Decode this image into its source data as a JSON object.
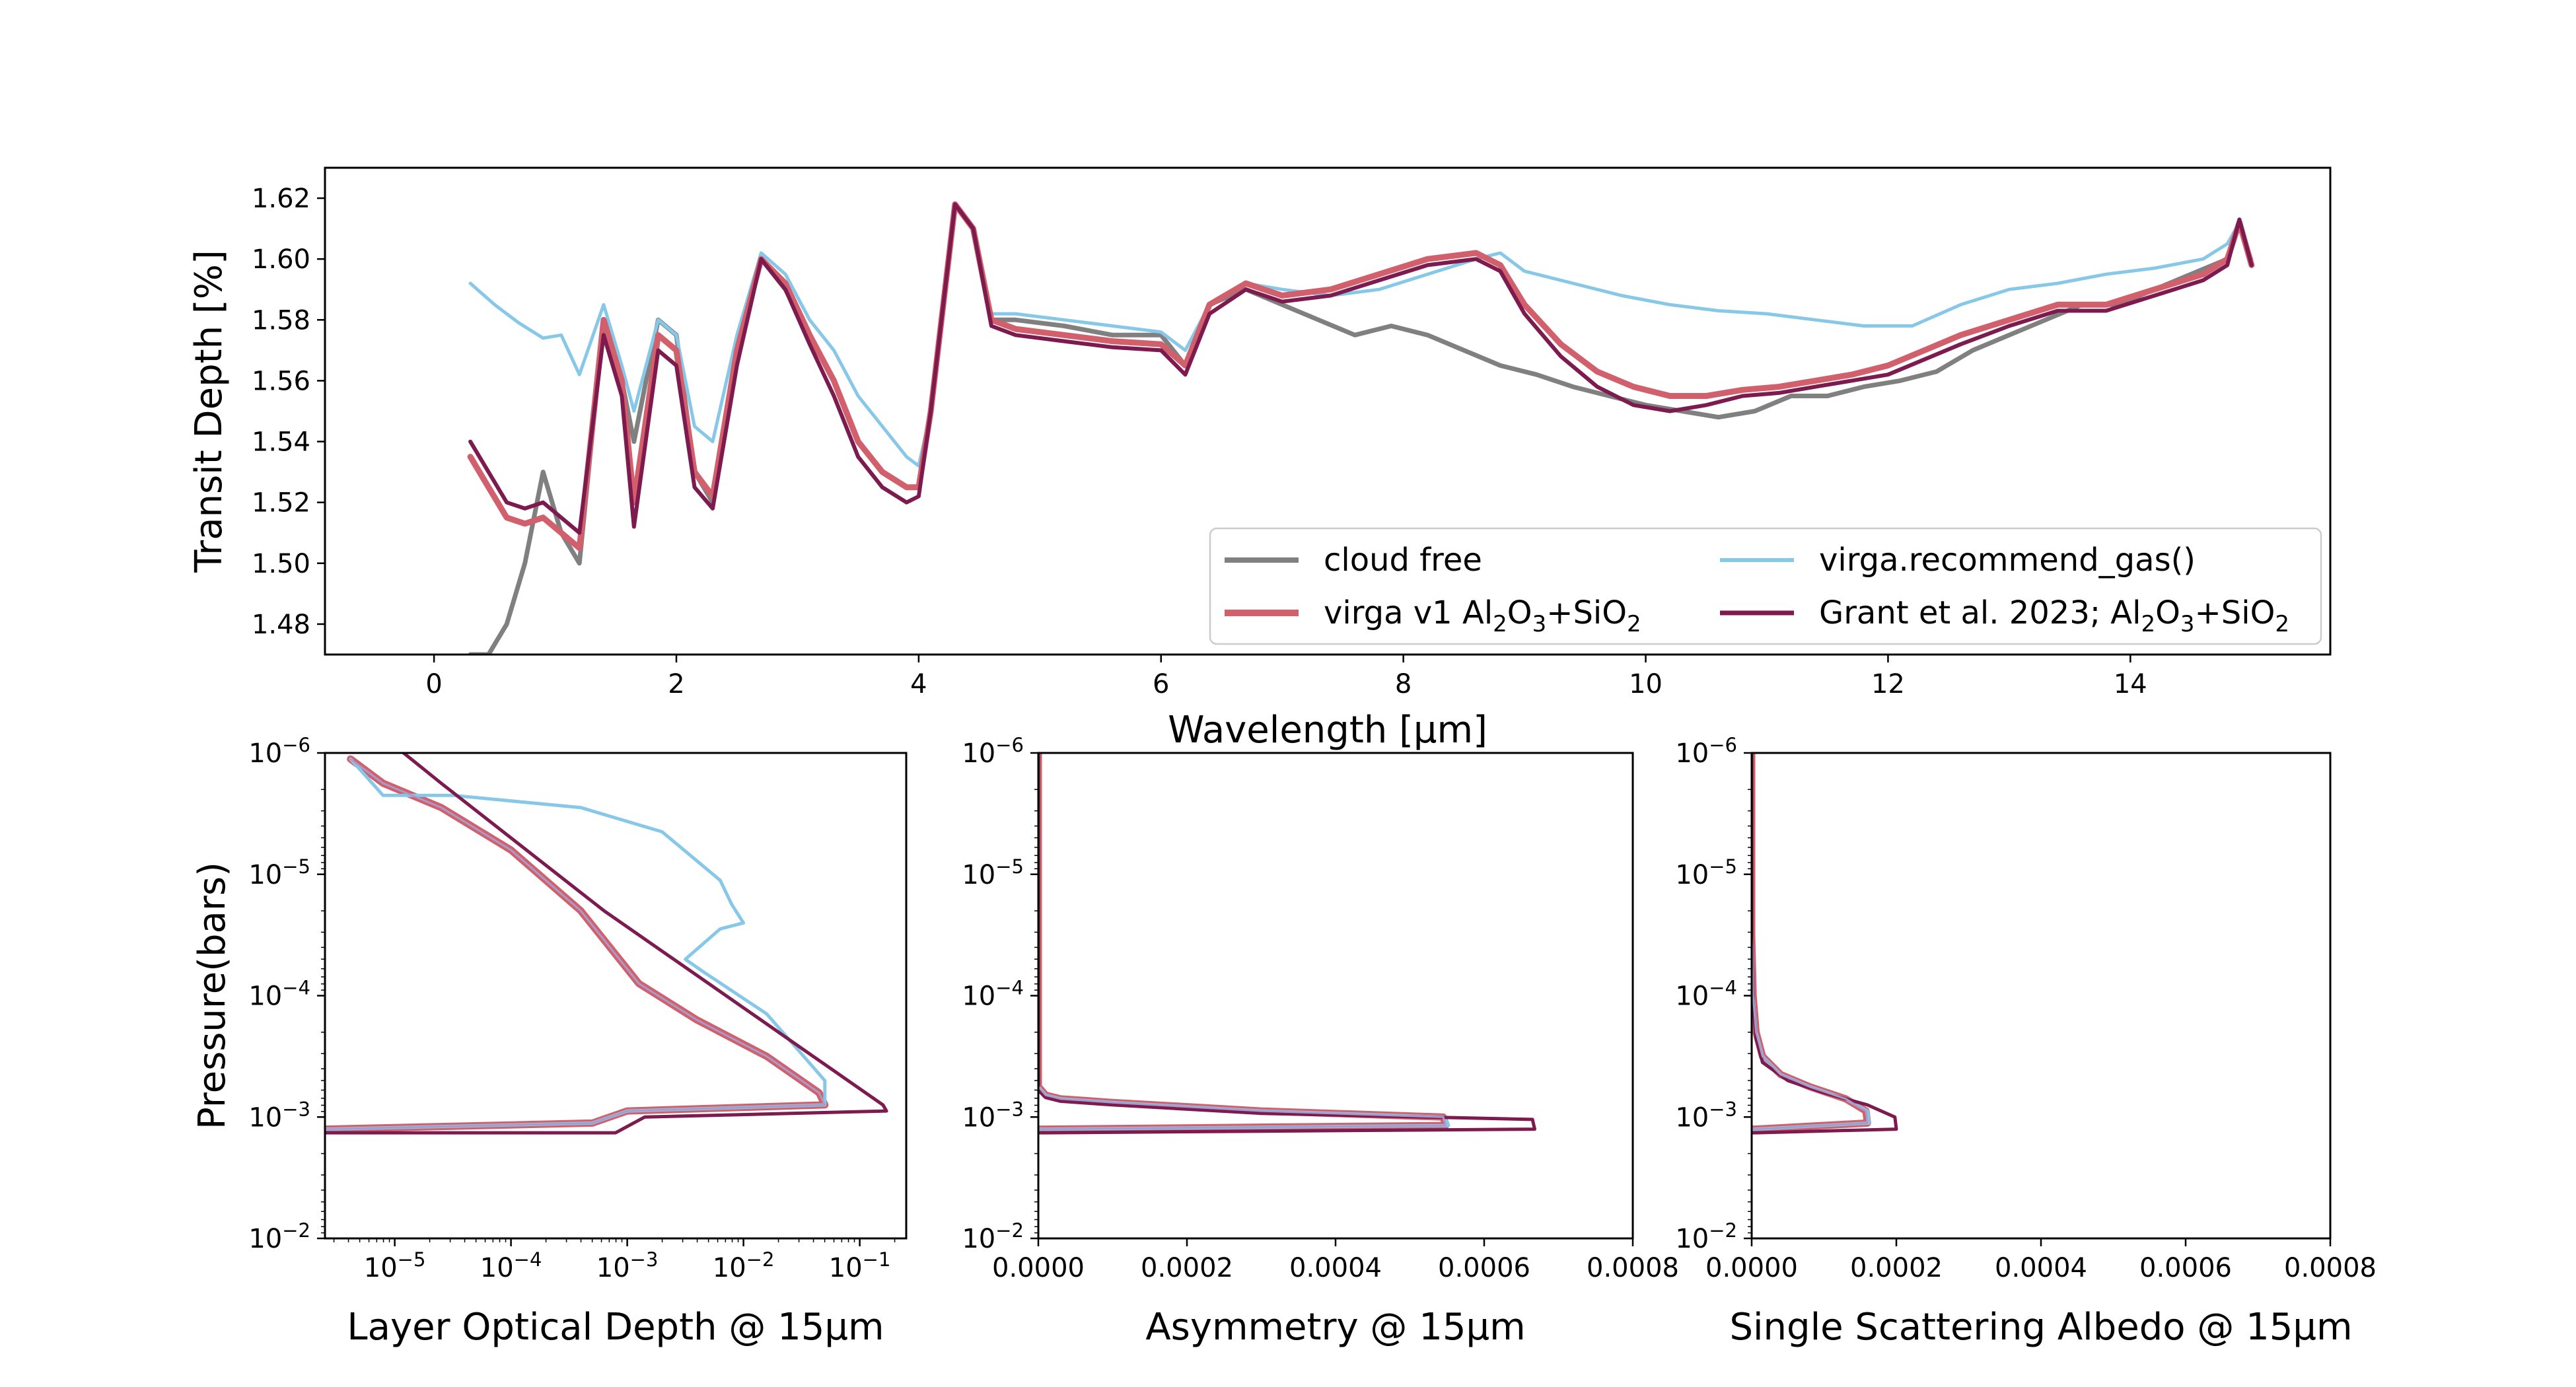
{
  "colors": {
    "cloud_free": "#808080",
    "virga_v1": "#d1606c",
    "recommend_gas": "#87c8e8",
    "grant": "#7d1a4e",
    "inner_light": "#a99bc9"
  },
  "chart_data": [
    {
      "type": "line",
      "id": "spectrum",
      "xlabel": "Wavelength [μm]",
      "ylabel": "Transit Depth [%]",
      "xlim": [
        -0.9,
        15.65
      ],
      "ylim": [
        1.47,
        1.63
      ],
      "xticks": [
        "0",
        "2",
        "4",
        "6",
        "8",
        "10",
        "12",
        "14"
      ],
      "yticks": [
        "1.48",
        "1.50",
        "1.52",
        "1.54",
        "1.56",
        "1.58",
        "1.60",
        "1.62"
      ],
      "legend": {
        "placement": "lower right",
        "entries": [
          {
            "key": "cloud_free",
            "label": "cloud free"
          },
          {
            "key": "recommend_gas",
            "label": "virga.recommend_gas()"
          },
          {
            "key": "virga_v1",
            "label_parts": [
              "virga v1 Al",
              "2",
              "O",
              "3",
              "+SiO",
              "2"
            ]
          },
          {
            "key": "grant",
            "label_parts": [
              "Grant et al. 2023; Al",
              "2",
              "O",
              "3",
              "+SiO",
              "2"
            ]
          }
        ]
      },
      "series": [
        {
          "key": "cloud_free",
          "name": "cloud free",
          "x": [
            0.3,
            0.45,
            0.6,
            0.75,
            0.9,
            1.05,
            1.2,
            1.4,
            1.55,
            1.65,
            1.85,
            2.0,
            2.15,
            2.3,
            2.5,
            2.7,
            2.9,
            3.1,
            3.3,
            3.5,
            3.7,
            3.9,
            4.0,
            4.1,
            4.3,
            4.45,
            4.6,
            4.8,
            5.2,
            5.6,
            6.0,
            6.2,
            6.4,
            6.7,
            7.0,
            7.3,
            7.6,
            7.9,
            8.2,
            8.5,
            8.8,
            9.1,
            9.4,
            9.7,
            10.0,
            10.3,
            10.6,
            10.9,
            11.2,
            11.5,
            11.8,
            12.1,
            12.4,
            12.7,
            13.0,
            13.3,
            13.6,
            13.9,
            14.2,
            14.5,
            14.8,
            14.9,
            15.0
          ],
          "y": [
            1.47,
            1.47,
            1.48,
            1.5,
            1.53,
            1.51,
            1.5,
            1.58,
            1.56,
            1.54,
            1.58,
            1.575,
            1.53,
            1.52,
            1.57,
            1.6,
            1.59,
            1.575,
            1.56,
            1.54,
            1.53,
            1.525,
            1.525,
            1.55,
            1.618,
            1.61,
            1.58,
            1.58,
            1.578,
            1.575,
            1.575,
            1.565,
            1.585,
            1.59,
            1.585,
            1.58,
            1.575,
            1.578,
            1.575,
            1.57,
            1.565,
            1.562,
            1.558,
            1.555,
            1.552,
            1.55,
            1.548,
            1.55,
            1.555,
            1.555,
            1.558,
            1.56,
            1.563,
            1.57,
            1.575,
            1.58,
            1.585,
            1.585,
            1.59,
            1.595,
            1.6,
            1.612,
            1.598
          ]
        },
        {
          "key": "recommend_gas",
          "name": "virga.recommend_gas()",
          "x": [
            0.3,
            0.5,
            0.7,
            0.9,
            1.05,
            1.2,
            1.4,
            1.55,
            1.65,
            1.85,
            2.0,
            2.15,
            2.3,
            2.5,
            2.7,
            2.9,
            3.1,
            3.3,
            3.5,
            3.7,
            3.9,
            4.0,
            4.1,
            4.3,
            4.45,
            4.6,
            4.8,
            5.2,
            5.6,
            6.0,
            6.2,
            6.4,
            6.7,
            7.0,
            7.4,
            7.8,
            8.2,
            8.6,
            8.8,
            9.0,
            9.4,
            9.8,
            10.2,
            10.6,
            11.0,
            11.4,
            11.8,
            12.2,
            12.6,
            13.0,
            13.4,
            13.8,
            14.2,
            14.6,
            14.8,
            14.9,
            15.0
          ],
          "y": [
            1.592,
            1.585,
            1.579,
            1.574,
            1.575,
            1.562,
            1.585,
            1.565,
            1.55,
            1.58,
            1.575,
            1.545,
            1.54,
            1.575,
            1.602,
            1.595,
            1.58,
            1.57,
            1.555,
            1.545,
            1.535,
            1.532,
            1.55,
            1.618,
            1.61,
            1.582,
            1.582,
            1.58,
            1.578,
            1.576,
            1.57,
            1.585,
            1.592,
            1.59,
            1.588,
            1.59,
            1.595,
            1.6,
            1.602,
            1.596,
            1.592,
            1.588,
            1.585,
            1.583,
            1.582,
            1.58,
            1.578,
            1.578,
            1.585,
            1.59,
            1.592,
            1.595,
            1.597,
            1.6,
            1.605,
            1.612,
            1.6
          ]
        },
        {
          "key": "virga_v1",
          "name": "virga v1 Al2O3+SiO2",
          "x": [
            0.3,
            0.45,
            0.6,
            0.75,
            0.9,
            1.05,
            1.2,
            1.4,
            1.55,
            1.65,
            1.85,
            2.0,
            2.15,
            2.3,
            2.5,
            2.7,
            2.9,
            3.1,
            3.3,
            3.5,
            3.7,
            3.9,
            4.0,
            4.1,
            4.3,
            4.45,
            4.6,
            4.8,
            5.2,
            5.6,
            6.0,
            6.2,
            6.4,
            6.7,
            7.0,
            7.4,
            7.8,
            8.2,
            8.6,
            8.8,
            9.0,
            9.3,
            9.6,
            9.9,
            10.2,
            10.5,
            10.8,
            11.1,
            11.4,
            11.7,
            12.0,
            12.3,
            12.6,
            13.0,
            13.4,
            13.8,
            14.2,
            14.6,
            14.8,
            14.9,
            15.0
          ],
          "y": [
            1.535,
            1.525,
            1.515,
            1.513,
            1.515,
            1.51,
            1.505,
            1.58,
            1.56,
            1.52,
            1.575,
            1.57,
            1.53,
            1.522,
            1.57,
            1.6,
            1.592,
            1.575,
            1.56,
            1.54,
            1.53,
            1.525,
            1.525,
            1.55,
            1.618,
            1.61,
            1.58,
            1.577,
            1.575,
            1.573,
            1.572,
            1.565,
            1.585,
            1.592,
            1.588,
            1.59,
            1.595,
            1.6,
            1.602,
            1.598,
            1.585,
            1.572,
            1.563,
            1.558,
            1.555,
            1.555,
            1.557,
            1.558,
            1.56,
            1.562,
            1.565,
            1.57,
            1.575,
            1.58,
            1.585,
            1.585,
            1.59,
            1.595,
            1.6,
            1.612,
            1.598
          ]
        },
        {
          "key": "grant",
          "name": "Grant et al. 2023; Al2O3+SiO2",
          "x": [
            0.3,
            0.45,
            0.6,
            0.75,
            0.9,
            1.05,
            1.2,
            1.4,
            1.55,
            1.65,
            1.85,
            2.0,
            2.15,
            2.3,
            2.5,
            2.7,
            2.9,
            3.1,
            3.3,
            3.5,
            3.7,
            3.9,
            4.0,
            4.1,
            4.3,
            4.45,
            4.6,
            4.8,
            5.2,
            5.6,
            6.0,
            6.2,
            6.4,
            6.7,
            7.0,
            7.4,
            7.8,
            8.2,
            8.6,
            8.8,
            9.0,
            9.3,
            9.6,
            9.9,
            10.2,
            10.5,
            10.8,
            11.1,
            11.4,
            11.7,
            12.0,
            12.3,
            12.6,
            13.0,
            13.4,
            13.8,
            14.2,
            14.6,
            14.8,
            14.9,
            15.0
          ],
          "y": [
            1.54,
            1.53,
            1.52,
            1.518,
            1.52,
            1.515,
            1.51,
            1.575,
            1.555,
            1.512,
            1.57,
            1.565,
            1.525,
            1.518,
            1.565,
            1.6,
            1.59,
            1.572,
            1.555,
            1.535,
            1.525,
            1.52,
            1.522,
            1.55,
            1.618,
            1.61,
            1.578,
            1.575,
            1.573,
            1.571,
            1.57,
            1.562,
            1.582,
            1.59,
            1.586,
            1.588,
            1.593,
            1.598,
            1.6,
            1.596,
            1.582,
            1.568,
            1.558,
            1.552,
            1.55,
            1.552,
            1.555,
            1.556,
            1.558,
            1.56,
            1.562,
            1.567,
            1.572,
            1.578,
            1.583,
            1.583,
            1.588,
            1.593,
            1.598,
            1.613,
            1.598
          ]
        }
      ]
    },
    {
      "type": "line",
      "id": "optical_depth",
      "xlabel": "Layer Optical Depth @ 15μm",
      "ylabel": "Pressure(bars)",
      "xscale": "log",
      "yscale": "log",
      "xlim_log10": [
        -5.6,
        -0.6
      ],
      "ylim_log10": [
        -6,
        -2
      ],
      "y_inverted": true,
      "xticks": [
        {
          "mant": "10",
          "exp": "−5"
        },
        {
          "mant": "10",
          "exp": "−4"
        },
        {
          "mant": "10",
          "exp": "−3"
        },
        {
          "mant": "10",
          "exp": "−2"
        },
        {
          "mant": "10",
          "exp": "−1"
        }
      ],
      "yticks": [
        {
          "mant": "10",
          "exp": "−6"
        },
        {
          "mant": "10",
          "exp": "−5"
        },
        {
          "mant": "10",
          "exp": "−4"
        },
        {
          "mant": "10",
          "exp": "−3"
        },
        {
          "mant": "10",
          "exp": "−2"
        }
      ],
      "series": [
        {
          "key": "virga_v1",
          "log_x": [
            -5.38,
            -5.1,
            -4.6,
            -4.0,
            -3.4,
            -2.9,
            -2.4,
            -1.8,
            -1.35,
            -1.3,
            -3.0,
            -3.3,
            -5.6
          ],
          "log_y": [
            -5.95,
            -5.75,
            -5.55,
            -5.2,
            -4.7,
            -4.1,
            -3.8,
            -3.5,
            -3.2,
            -3.1,
            -3.05,
            -2.95,
            -2.9
          ]
        },
        {
          "key": "recommend_gas",
          "log_x": [
            -5.38,
            -5.1,
            -4.5,
            -3.4,
            -2.7,
            -2.2,
            -2.1,
            -2.0,
            -2.2,
            -2.5,
            -2.35,
            -1.8,
            -1.3,
            -1.3,
            -3.0,
            -3.3,
            -5.6
          ],
          "log_y": [
            -5.95,
            -5.65,
            -5.65,
            -5.55,
            -5.35,
            -4.95,
            -4.75,
            -4.6,
            -4.55,
            -4.3,
            -4.2,
            -3.85,
            -3.3,
            -3.1,
            -3.05,
            -2.95,
            -2.9
          ]
        },
        {
          "key": "grant",
          "log_x": [
            -4.95,
            -4.6,
            -4.0,
            -3.2,
            -2.3,
            -1.4,
            -0.8,
            -0.77,
            -2.85,
            -3.1,
            -5.6
          ],
          "log_y": [
            -6.02,
            -5.75,
            -5.3,
            -4.7,
            -4.1,
            -3.5,
            -3.1,
            -3.05,
            -3.0,
            -2.87,
            -2.87
          ]
        },
        {
          "key": "inner_light",
          "log_x": [
            -5.38,
            -5.1,
            -4.6,
            -4.0,
            -3.4,
            -2.9,
            -2.4,
            -1.8,
            -1.35,
            -1.3,
            -3.0,
            -3.3,
            -5.6
          ],
          "log_y": [
            -5.95,
            -5.75,
            -5.55,
            -5.2,
            -4.7,
            -4.1,
            -3.8,
            -3.5,
            -3.2,
            -3.1,
            -3.05,
            -2.95,
            -2.9
          ]
        }
      ]
    },
    {
      "type": "line",
      "id": "asymmetry",
      "xlabel": "Asymmetry @ 15μm",
      "xlim": [
        0,
        0.0008
      ],
      "ylim_log10": [
        -6,
        -2
      ],
      "y_inverted": true,
      "xticks": [
        "0.0000",
        "0.0002",
        "0.0004",
        "0.0006",
        "0.0008"
      ],
      "yticks": [
        {
          "mant": "10",
          "exp": "−6"
        },
        {
          "mant": "10",
          "exp": "−5"
        },
        {
          "mant": "10",
          "exp": "−4"
        },
        {
          "mant": "10",
          "exp": "−3"
        },
        {
          "mant": "10",
          "exp": "−2"
        }
      ],
      "series": [
        {
          "key": "virga_v1",
          "x": [
            0.0,
            0.0,
            1e-05,
            3e-05,
            0.0001,
            0.0003,
            0.000545,
            0.000548,
            1e-05,
            0.0
          ],
          "log_y": [
            -6,
            -3.25,
            -3.18,
            -3.15,
            -3.12,
            -3.05,
            -3.0,
            -2.93,
            -2.9,
            -2.9
          ]
        },
        {
          "key": "recommend_gas",
          "x": [
            0.0,
            0.0,
            1e-05,
            3e-05,
            0.0001,
            0.0003,
            0.000548,
            0.000552,
            1e-05,
            0.0
          ],
          "log_y": [
            -6,
            -3.25,
            -3.18,
            -3.15,
            -3.12,
            -3.05,
            -3.0,
            -2.93,
            -2.9,
            -2.9
          ]
        },
        {
          "key": "grant",
          "x": [
            0.0,
            0.0,
            1e-05,
            3e-05,
            0.0001,
            0.0003,
            0.000665,
            0.000668,
            1e-05,
            0.0
          ],
          "log_y": [
            -6,
            -3.22,
            -3.16,
            -3.13,
            -3.1,
            -3.03,
            -2.98,
            -2.9,
            -2.87,
            -2.87
          ]
        },
        {
          "key": "inner_light",
          "x": [
            0.0,
            0.0,
            1e-05,
            3e-05,
            0.0001,
            0.0003,
            0.000545,
            0.000548,
            1e-05,
            0.0
          ],
          "log_y": [
            -6,
            -3.25,
            -3.18,
            -3.15,
            -3.12,
            -3.05,
            -3.0,
            -2.93,
            -2.9,
            -2.9
          ]
        }
      ]
    },
    {
      "type": "line",
      "id": "albedo",
      "xlabel": "Single Scattering Albedo @ 15μm",
      "xlim": [
        0,
        0.0008
      ],
      "ylim_log10": [
        -6,
        -2
      ],
      "y_inverted": true,
      "xticks": [
        "0.0000",
        "0.0002",
        "0.0004",
        "0.0006",
        "0.0008"
      ],
      "yticks": [
        {
          "mant": "10",
          "exp": "−6"
        },
        {
          "mant": "10",
          "exp": "−5"
        },
        {
          "mant": "10",
          "exp": "−4"
        },
        {
          "mant": "10",
          "exp": "−3"
        },
        {
          "mant": "10",
          "exp": "−2"
        }
      ],
      "series": [
        {
          "key": "virga_v1",
          "x": [
            0.0,
            0.0,
            2e-06,
            6e-06,
            1.5e-05,
            4e-05,
            8e-05,
            0.00013,
            0.000158,
            0.00016,
            5e-06,
            0.0
          ],
          "log_y": [
            -6,
            -4.5,
            -4.0,
            -3.7,
            -3.5,
            -3.35,
            -3.25,
            -3.15,
            -3.05,
            -2.95,
            -2.9,
            -2.9
          ]
        },
        {
          "key": "recommend_gas",
          "x": [
            0.0,
            0.0,
            2e-06,
            6e-06,
            1.5e-05,
            4e-05,
            8e-05,
            0.00013,
            0.00016,
            0.000162,
            5e-06,
            0.0
          ],
          "log_y": [
            -6,
            -4.5,
            -4.0,
            -3.7,
            -3.5,
            -3.35,
            -3.25,
            -3.15,
            -3.05,
            -2.95,
            -2.9,
            -2.9
          ]
        },
        {
          "key": "grant",
          "x": [
            0.0,
            0.0,
            2e-06,
            6e-06,
            1.5e-05,
            5e-05,
            0.0001,
            0.00016,
            0.000198,
            0.0002,
            5e-06,
            0.0
          ],
          "log_y": [
            -6,
            -4.4,
            -3.95,
            -3.65,
            -3.45,
            -3.3,
            -3.2,
            -3.1,
            -3.0,
            -2.9,
            -2.87,
            -2.87
          ]
        },
        {
          "key": "inner_light",
          "x": [
            0.0,
            0.0,
            2e-06,
            6e-06,
            1.5e-05,
            4e-05,
            8e-05,
            0.00013,
            0.000158,
            0.00016,
            5e-06,
            0.0
          ],
          "log_y": [
            -6,
            -4.5,
            -4.0,
            -3.7,
            -3.5,
            -3.35,
            -3.25,
            -3.15,
            -3.05,
            -2.95,
            -2.9,
            -2.9
          ]
        }
      ]
    }
  ]
}
